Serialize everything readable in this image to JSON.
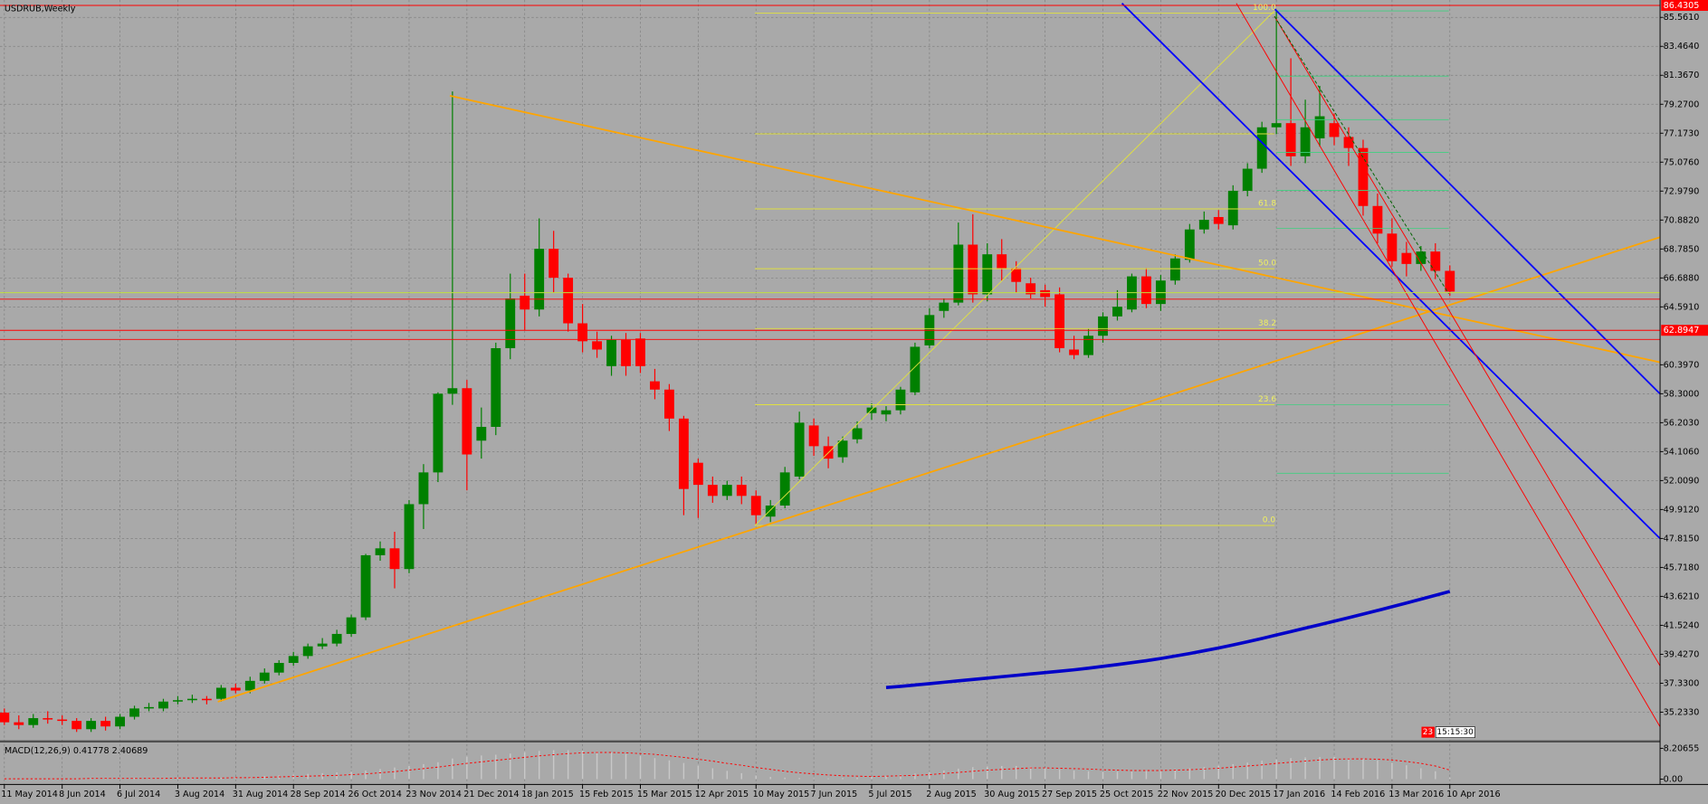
{
  "chart_data": [
    {
      "type": "candlestick",
      "title": "USDRUB,Weekly",
      "categories": [
        "11 May 2014",
        null,
        null,
        null,
        "8 Jun 2014",
        null,
        null,
        null,
        "6 Jul 2014",
        null,
        null,
        null,
        "3 Aug 2014",
        null,
        null,
        null,
        "31 Aug 2014",
        null,
        null,
        null,
        "28 Sep 2014",
        null,
        null,
        null,
        "26 Oct 2014",
        null,
        null,
        null,
        "23 Nov 2014",
        null,
        null,
        null,
        "21 Dec 2014",
        null,
        null,
        null,
        "18 Jan 2015",
        null,
        null,
        null,
        "15 Feb 2015",
        null,
        null,
        null,
        "15 Mar 2015",
        null,
        null,
        null,
        "12 Apr 2015",
        null,
        null,
        null,
        "10 May 2015",
        null,
        null,
        null,
        "7 Jun 2015",
        null,
        null,
        null,
        "5 Jul 2015",
        null,
        null,
        null,
        "2 Aug 2015",
        null,
        null,
        null,
        "30 Aug 2015",
        null,
        null,
        null,
        "27 Sep 2015",
        null,
        null,
        null,
        "25 Oct 2015",
        null,
        null,
        null,
        "22 Nov 2015",
        null,
        null,
        null,
        "20 Dec 2015",
        null,
        null,
        null,
        "17 Jan 2016",
        null,
        null,
        null,
        "14 Feb 2016",
        null,
        null,
        null,
        "13 Mar 2016",
        null,
        null,
        null,
        "10 Apr 2016"
      ],
      "open": [
        35.2,
        34.5,
        34.3,
        34.8,
        34.7,
        34.6,
        34.0,
        34.6,
        34.2,
        34.9,
        35.5,
        35.5,
        36.0,
        36.1,
        36.2,
        36.2,
        37.0,
        36.8,
        37.5,
        38.1,
        38.8,
        39.3,
        40.0,
        40.2,
        40.9,
        42.1,
        46.6,
        47.1,
        45.6,
        50.3,
        52.6,
        58.3,
        58.7,
        54.9,
        55.9,
        61.6,
        65.4,
        64.4,
        68.8,
        66.7,
        63.4,
        62.1,
        60.3,
        62.2,
        62.3,
        59.2,
        58.6,
        56.5,
        53.3,
        51.7,
        50.9,
        51.7,
        50.9,
        49.4,
        50.2,
        52.3,
        56.0,
        54.5,
        53.7,
        55.0,
        56.9,
        56.8,
        57.1,
        58.4,
        61.8,
        64.3,
        64.9,
        69.1,
        65.5,
        68.4,
        67.4,
        66.3,
        65.8,
        65.5,
        61.5,
        61.1,
        62.5,
        63.9,
        64.4,
        66.8,
        64.8,
        66.5,
        68.0,
        70.2,
        71.1,
        70.5,
        73.0,
        74.6,
        77.6,
        77.9,
        75.5,
        76.8,
        77.9,
        76.9,
        76.1,
        71.9,
        69.9,
        68.5,
        67.7,
        68.6,
        67.2
      ],
      "high": [
        35.5,
        35.0,
        35.1,
        35.3,
        35.0,
        34.8,
        34.8,
        34.9,
        35.1,
        35.7,
        35.9,
        36.2,
        36.4,
        36.5,
        36.4,
        37.2,
        37.3,
        37.8,
        38.4,
        39.0,
        39.6,
        40.2,
        40.6,
        41.2,
        42.3,
        46.7,
        47.6,
        48.3,
        50.6,
        53.2,
        58.4,
        80.2,
        59.3,
        57.3,
        62.0,
        67.0,
        67.0,
        71.0,
        70.1,
        67.0,
        64.8,
        62.8,
        62.5,
        62.7,
        62.7,
        60.1,
        59.0,
        56.7,
        53.6,
        52.3,
        52.0,
        52.3,
        51.3,
        50.6,
        53.0,
        57.0,
        56.5,
        55.2,
        55.2,
        56.3,
        57.6,
        57.4,
        58.8,
        62.0,
        64.5,
        65.2,
        70.7,
        71.3,
        69.2,
        69.5,
        67.9,
        66.7,
        66.2,
        66.0,
        62.5,
        63.0,
        64.2,
        65.8,
        67.0,
        67.4,
        66.9,
        68.4,
        70.6,
        71.5,
        71.6,
        73.4,
        75.0,
        78.0,
        86.0,
        82.6,
        79.6,
        80.6,
        78.6,
        77.6,
        76.7,
        72.8,
        71.0,
        69.3,
        69.0,
        69.2,
        67.6
      ],
      "low": [
        34.3,
        34.0,
        34.1,
        34.4,
        34.3,
        33.8,
        33.8,
        33.9,
        34.0,
        34.7,
        35.3,
        35.3,
        35.8,
        35.9,
        35.8,
        36.0,
        36.6,
        36.6,
        37.3,
        37.9,
        38.6,
        39.1,
        39.8,
        40.0,
        40.7,
        41.9,
        46.2,
        44.2,
        45.3,
        48.5,
        51.9,
        57.5,
        51.3,
        53.6,
        55.3,
        60.8,
        62.9,
        63.9,
        65.6,
        62.8,
        61.3,
        60.9,
        59.6,
        59.6,
        59.8,
        57.9,
        55.6,
        49.5,
        49.3,
        50.4,
        50.6,
        50.3,
        48.8,
        49.0,
        50.0,
        52.1,
        53.8,
        52.9,
        53.3,
        54.7,
        56.4,
        56.3,
        56.8,
        58.2,
        61.6,
        63.8,
        64.7,
        64.9,
        65.0,
        66.5,
        65.6,
        65.2,
        64.6,
        61.3,
        60.8,
        60.9,
        62.0,
        63.6,
        64.2,
        64.5,
        64.3,
        66.2,
        67.8,
        69.9,
        70.2,
        70.2,
        72.6,
        74.3,
        77.1,
        74.8,
        75.0,
        76.2,
        76.3,
        74.8,
        71.2,
        69.2,
        67.5,
        66.8,
        67.2,
        66.6,
        65.4
      ],
      "close": [
        34.5,
        34.3,
        34.8,
        34.7,
        34.6,
        34.0,
        34.6,
        34.2,
        34.9,
        35.5,
        35.6,
        36.0,
        36.1,
        36.2,
        36.1,
        37.0,
        36.8,
        37.5,
        38.1,
        38.8,
        39.3,
        40.0,
        40.2,
        40.9,
        42.1,
        46.6,
        47.1,
        45.6,
        50.3,
        52.6,
        58.3,
        58.7,
        53.9,
        55.9,
        61.6,
        65.2,
        64.4,
        68.8,
        66.7,
        63.4,
        62.1,
        61.5,
        62.2,
        60.3,
        60.3,
        58.6,
        56.5,
        51.4,
        51.7,
        50.9,
        51.7,
        50.9,
        49.5,
        50.2,
        52.6,
        56.2,
        54.5,
        53.6,
        54.9,
        55.8,
        57.3,
        57.1,
        58.6,
        61.7,
        64.0,
        64.9,
        69.1,
        65.5,
        68.4,
        67.4,
        66.4,
        65.5,
        65.3,
        61.6,
        61.1,
        62.5,
        63.9,
        64.6,
        66.8,
        64.8,
        66.5,
        68.1,
        70.2,
        70.9,
        70.6,
        73.0,
        74.6,
        77.6,
        77.9,
        75.5,
        77.6,
        78.4,
        76.9,
        76.1,
        71.9,
        69.9,
        67.9,
        67.7,
        68.6,
        67.2,
        65.7
      ],
      "up_color": "#008000",
      "down_color": "#ff0000",
      "ma": {
        "color": "#0000c8",
        "values": [
          null,
          null,
          null,
          null,
          null,
          null,
          null,
          null,
          null,
          null,
          null,
          null,
          null,
          null,
          null,
          null,
          null,
          null,
          null,
          null,
          null,
          null,
          null,
          null,
          null,
          null,
          null,
          null,
          null,
          null,
          null,
          null,
          null,
          null,
          null,
          null,
          null,
          null,
          null,
          null,
          null,
          null,
          null,
          null,
          null,
          null,
          null,
          null,
          null,
          null,
          null,
          null,
          null,
          null,
          null,
          null,
          null,
          null,
          null,
          null,
          null,
          37.02,
          37.1,
          37.2,
          37.3,
          37.4,
          37.5,
          37.6,
          37.7,
          37.8,
          37.9,
          38.0,
          38.1,
          38.2,
          38.3,
          38.42,
          38.55,
          38.68,
          38.82,
          38.96,
          39.12,
          39.3,
          39.48,
          39.68,
          39.88,
          40.1,
          40.33,
          40.57,
          40.82,
          41.07,
          41.32,
          41.57,
          41.82,
          42.08,
          42.34,
          42.6,
          42.87,
          43.14,
          43.42,
          43.7,
          43.98
        ]
      },
      "ylim": [
        33.23,
        86.585
      ],
      "yticks": [
        {
          "value": 85.561,
          "label": "85.5610"
        },
        {
          "value": 83.464,
          "label": "83.4640"
        },
        {
          "value": 81.367,
          "label": "81.3670"
        },
        {
          "value": 79.27,
          "label": "79.2700"
        },
        {
          "value": 77.173,
          "label": "77.1730"
        },
        {
          "value": 75.076,
          "label": "75.0760"
        },
        {
          "value": 72.979,
          "label": "72.9790"
        },
        {
          "value": 70.882,
          "label": "70.8820"
        },
        {
          "value": 68.785,
          "label": "68.7850"
        },
        {
          "value": 66.688,
          "label": "66.6880"
        },
        {
          "value": 64.591,
          "label": "64.5910"
        },
        {
          "value": 60.397,
          "label": "60.3970"
        },
        {
          "value": 58.3,
          "label": "58.3000"
        },
        {
          "value": 56.203,
          "label": "56.2030"
        },
        {
          "value": 54.106,
          "label": "54.1060"
        },
        {
          "value": 52.009,
          "label": "52.0090"
        },
        {
          "value": 49.912,
          "label": "49.9120"
        },
        {
          "value": 47.815,
          "label": "47.8150"
        },
        {
          "value": 45.718,
          "label": "45.7180"
        },
        {
          "value": 43.621,
          "label": "43.6210"
        },
        {
          "value": 41.524,
          "label": "41.5240"
        },
        {
          "value": 39.427,
          "label": "39.4270"
        },
        {
          "value": 37.33,
          "label": "37.3300"
        },
        {
          "value": 35.233,
          "label": "35.2330"
        }
      ],
      "grid": true,
      "price_lines": [
        {
          "value": 86.4305,
          "color": "#ff0000"
        },
        {
          "value": 62.8947,
          "color": "#ff0000"
        }
      ],
      "fib_labels": [
        "100.0",
        "61.8",
        "50.0",
        "38.2",
        "23.6",
        "0.0"
      ],
      "bar_timer": {
        "day": "23",
        "time": "15:15:30"
      }
    },
    {
      "type": "bar",
      "title": "MACD(12,26,9) 0.41778 2.40689",
      "values": [
        0.1,
        0.1,
        0.1,
        0.1,
        0.2,
        0.2,
        0.2,
        0.2,
        0.2,
        0.3,
        0.3,
        0.3,
        0.3,
        0.4,
        0.4,
        0.4,
        0.5,
        0.6,
        0.8,
        1.0,
        1.2,
        1.4,
        1.6,
        1.8,
        2.0,
        2.3,
        2.7,
        3.1,
        3.5,
        4.0,
        4.5,
        5.5,
        6.0,
        6.3,
        6.5,
        6.8,
        7.2,
        7.5,
        7.7,
        7.7,
        7.6,
        7.4,
        7.1,
        6.7,
        6.2,
        5.6,
        5.0,
        4.3,
        3.6,
        2.9,
        2.2,
        1.6,
        1.0,
        0.6,
        0.4,
        0.3,
        0.2,
        0.2,
        0.3,
        0.4,
        0.6,
        0.9,
        1.2,
        1.5,
        1.9,
        2.3,
        2.8,
        3.2,
        3.4,
        3.5,
        3.5,
        3.3,
        3.0,
        2.6,
        2.3,
        2.1,
        2.0,
        2.0,
        2.1,
        2.2,
        2.4,
        2.6,
        2.9,
        3.2,
        3.6,
        4.0,
        4.4,
        4.9,
        5.3,
        5.6,
        5.8,
        5.9,
        5.9,
        5.7,
        5.4,
        5.0,
        4.4,
        3.7,
        2.9,
        2.1,
        0.41778
      ],
      "signal": [
        0.1,
        0.1,
        0.1,
        0.1,
        0.1,
        0.1,
        0.2,
        0.2,
        0.2,
        0.2,
        0.2,
        0.2,
        0.3,
        0.3,
        0.3,
        0.3,
        0.4,
        0.4,
        0.5,
        0.6,
        0.7,
        0.8,
        0.9,
        1.0,
        1.2,
        1.4,
        1.7,
        2.0,
        2.4,
        2.8,
        3.2,
        3.7,
        4.2,
        4.6,
        5.0,
        5.4,
        5.8,
        6.2,
        6.5,
        6.8,
        7.0,
        7.1,
        7.1,
        7.0,
        6.8,
        6.6,
        6.2,
        5.8,
        5.3,
        4.8,
        4.2,
        3.7,
        3.1,
        2.6,
        2.1,
        1.7,
        1.4,
        1.1,
        0.9,
        0.8,
        0.7,
        0.8,
        0.9,
        1.0,
        1.2,
        1.5,
        1.8,
        2.1,
        2.4,
        2.6,
        2.8,
        3.0,
        3.0,
        2.9,
        2.8,
        2.7,
        2.5,
        2.4,
        2.3,
        2.3,
        2.3,
        2.4,
        2.5,
        2.7,
        2.9,
        3.2,
        3.5,
        3.8,
        4.2,
        4.5,
        4.8,
        5.1,
        5.3,
        5.4,
        5.4,
        5.3,
        5.1,
        4.7,
        4.2,
        3.5,
        2.40689
      ],
      "color": "#c8c8c8",
      "signal_color": "#ff0000",
      "ylim": [
        -1.4,
        9.6
      ],
      "yticks": [
        {
          "value": 8.20655,
          "label": "8.20655"
        },
        {
          "value": 0,
          "label": "0.00"
        }
      ]
    }
  ]
}
